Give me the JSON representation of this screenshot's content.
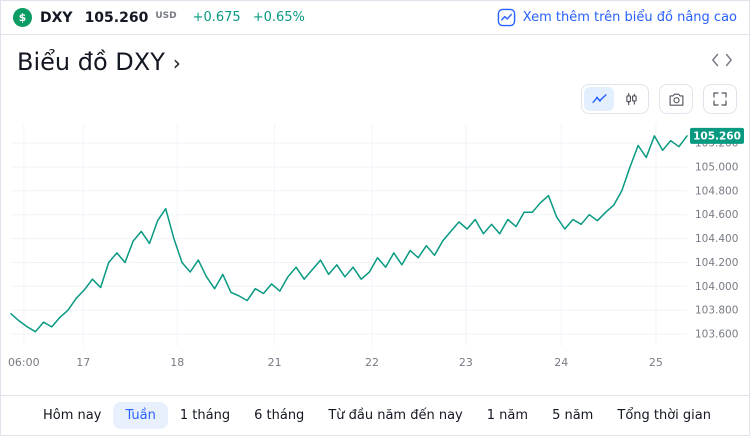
{
  "header": {
    "logo": "$",
    "symbol": "DXY",
    "price": "105.260",
    "currency": "USD",
    "change": "+0.675",
    "change_percent": "+0.65%",
    "advanced_chart_link": "Xem thêm trên biểu đồ nâng cao"
  },
  "section": {
    "title": "Biểu đồ DXY",
    "chevron": "›"
  },
  "chart_toolbar": {
    "icons": [
      "line-chart",
      "candlestick",
      "camera",
      "fullscreen"
    ],
    "active_icon": "line-chart"
  },
  "chart_data": {
    "type": "line",
    "title": "Biểu đồ DXY - Tuần",
    "series": [
      {
        "name": "DXY",
        "color": "#089981",
        "values": [
          103.77,
          103.71,
          103.66,
          103.62,
          103.7,
          103.66,
          103.74,
          103.8,
          103.9,
          103.97,
          104.06,
          103.99,
          104.2,
          104.28,
          104.2,
          104.38,
          104.46,
          104.36,
          104.55,
          104.65,
          104.4,
          104.2,
          104.12,
          104.22,
          104.08,
          103.98,
          104.1,
          103.95,
          103.92,
          103.88,
          103.98,
          103.94,
          104.02,
          103.96,
          104.08,
          104.16,
          104.06,
          104.14,
          104.22,
          104.1,
          104.18,
          104.08,
          104.16,
          104.06,
          104.12,
          104.24,
          104.16,
          104.28,
          104.18,
          104.3,
          104.24,
          104.34,
          104.26,
          104.38,
          104.46,
          104.54,
          104.48,
          104.56,
          104.44,
          104.52,
          104.44,
          104.56,
          104.5,
          104.62,
          104.62,
          104.7,
          104.76,
          104.58,
          104.48,
          104.56,
          104.52,
          104.6,
          104.55,
          104.62,
          104.68,
          104.8,
          105.0,
          105.18,
          105.08,
          105.26,
          105.14,
          105.22,
          105.17,
          105.26
        ]
      }
    ],
    "x_ticks": [
      {
        "label": "06:00",
        "pos": 0.019
      },
      {
        "label": "17",
        "pos": 0.107
      },
      {
        "label": "18",
        "pos": 0.246
      },
      {
        "label": "21",
        "pos": 0.39
      },
      {
        "label": "22",
        "pos": 0.534
      },
      {
        "label": "23",
        "pos": 0.673
      },
      {
        "label": "24",
        "pos": 0.814
      },
      {
        "label": "25",
        "pos": 0.954
      }
    ],
    "y_ticks": [
      "105.200",
      "105.000",
      "104.800",
      "104.600",
      "104.400",
      "104.200",
      "104.000",
      "103.800",
      "103.600"
    ],
    "ylim": [
      103.5,
      105.36
    ],
    "last_price": "105.260",
    "grid": true,
    "legend": false
  },
  "tabs": [
    {
      "label": "Hôm nay",
      "active": false
    },
    {
      "label": "Tuần",
      "active": true
    },
    {
      "label": "1 tháng",
      "active": false
    },
    {
      "label": "6 tháng",
      "active": false
    },
    {
      "label": "Từ đầu năm đến nay",
      "active": false
    },
    {
      "label": "1 năm",
      "active": false
    },
    {
      "label": "5 năm",
      "active": false
    },
    {
      "label": "Tổng thời gian",
      "active": false
    }
  ],
  "colors": {
    "accent_blue": "#2962ff",
    "line_green": "#089981",
    "badge_green": "#089981",
    "logo_green": "#0a9c62",
    "selected_tab_bg": "#e8f0fe",
    "border": "#e0e3eb",
    "muted_text": "#787b86"
  }
}
